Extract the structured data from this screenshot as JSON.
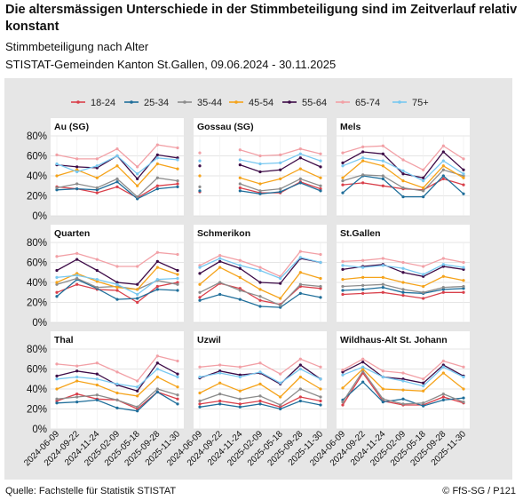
{
  "title": "Die altersmässigen Unterschiede in der Stimmbeteiligung sind im Zeitverlauf relativ konstant",
  "subtitle": "Stimmbeteiligung nach Alter",
  "subtitle2": "STISTAT-Gemeinden Kanton St.Gallen, 09.06.2024 - 30.11.2025",
  "source": "Quelle: Fachstelle für Statistik STISTAT",
  "copyright": "© FfS-SG / P121",
  "chart_data": {
    "type": "line",
    "dates": [
      "2024-06-09",
      "2024-09-22",
      "2024-11-24",
      "2025-02-09",
      "2025-05-18",
      "2025-09-28",
      "2025-11-30"
    ],
    "y_ticks": [
      "0%",
      "20%",
      "40%",
      "60%",
      "80%"
    ],
    "ylim": [
      0,
      80
    ],
    "legend_position": "top",
    "series": [
      {
        "name": "18-24",
        "color": "#d9404b"
      },
      {
        "name": "25-34",
        "color": "#1f6e9a"
      },
      {
        "name": "35-44",
        "color": "#8c8c8c"
      },
      {
        "name": "45-54",
        "color": "#f5a31a"
      },
      {
        "name": "55-64",
        "color": "#3d0b47"
      },
      {
        "name": "65-74",
        "color": "#f2a0a6"
      },
      {
        "name": "75+",
        "color": "#78c8f0"
      }
    ],
    "panels": [
      {
        "name": "Au (SG)",
        "values": [
          [
            29,
            27,
            23,
            29,
            18,
            30,
            32
          ],
          [
            26,
            27,
            26,
            34,
            17,
            27,
            29
          ],
          [
            28,
            32,
            28,
            37,
            19,
            38,
            35
          ],
          [
            40,
            46,
            38,
            50,
            30,
            52,
            47
          ],
          [
            51,
            49,
            48,
            60,
            37,
            61,
            58
          ],
          [
            61,
            57,
            57,
            67,
            49,
            71,
            68
          ],
          [
            52,
            44,
            50,
            60,
            42,
            58,
            56
          ]
        ]
      },
      {
        "name": "Gossau (SG)",
        "values": [
          [
            24,
            null,
            28,
            23,
            23,
            34,
            27
          ],
          [
            25,
            null,
            25,
            22,
            24,
            33,
            25
          ],
          [
            29,
            null,
            32,
            25,
            27,
            37,
            30
          ],
          [
            40,
            null,
            38,
            32,
            37,
            47,
            38
          ],
          [
            50,
            null,
            51,
            44,
            46,
            58,
            49
          ],
          [
            63,
            null,
            66,
            60,
            61,
            67,
            62
          ],
          [
            55,
            null,
            56,
            52,
            53,
            62,
            55
          ]
        ]
      },
      {
        "name": "Mels",
        "values": [
          [
            31,
            33,
            30,
            27,
            26,
            37,
            31
          ],
          [
            23,
            40,
            37,
            19,
            19,
            40,
            22
          ],
          [
            35,
            41,
            40,
            28,
            25,
            46,
            40
          ],
          [
            38,
            55,
            50,
            35,
            28,
            50,
            38
          ],
          [
            53,
            64,
            62,
            42,
            38,
            64,
            46
          ],
          [
            63,
            69,
            70,
            56,
            46,
            70,
            57
          ],
          [
            50,
            58,
            55,
            45,
            35,
            55,
            42
          ]
        ]
      },
      {
        "name": "Quarten",
        "values": [
          [
            30,
            38,
            33,
            32,
            20,
            36,
            40
          ],
          [
            26,
            43,
            34,
            23,
            24,
            33,
            32
          ],
          [
            38,
            44,
            35,
            36,
            33,
            42,
            38
          ],
          [
            40,
            49,
            41,
            35,
            33,
            55,
            48
          ],
          [
            52,
            63,
            52,
            40,
            38,
            61,
            52
          ],
          [
            66,
            69,
            63,
            56,
            56,
            70,
            68
          ],
          [
            45,
            47,
            43,
            38,
            28,
            43,
            44
          ]
        ]
      },
      {
        "name": "Schmerikon",
        "values": [
          [
            25,
            39,
            34,
            22,
            18,
            36,
            34
          ],
          [
            22,
            28,
            23,
            16,
            15,
            29,
            25
          ],
          [
            30,
            40,
            32,
            26,
            17,
            38,
            36
          ],
          [
            38,
            55,
            45,
            33,
            24,
            50,
            44
          ],
          [
            49,
            61,
            54,
            40,
            39,
            64,
            60
          ],
          [
            57,
            67,
            62,
            55,
            46,
            71,
            68
          ],
          [
            55,
            64,
            57,
            52,
            44,
            65,
            60
          ]
        ]
      },
      {
        "name": "St.Gallen",
        "values": [
          [
            28,
            29,
            30,
            27,
            24,
            30,
            30
          ],
          [
            32,
            33,
            35,
            30,
            29,
            33,
            34
          ],
          [
            36,
            37,
            38,
            33,
            30,
            35,
            36
          ],
          [
            43,
            45,
            45,
            40,
            36,
            46,
            42
          ],
          [
            53,
            56,
            58,
            50,
            46,
            56,
            53
          ],
          [
            61,
            62,
            64,
            60,
            56,
            64,
            60
          ],
          [
            57,
            55,
            57,
            54,
            48,
            58,
            55
          ]
        ]
      },
      {
        "name": "Thal",
        "values": [
          [
            28,
            35,
            30,
            29,
            20,
            37,
            30
          ],
          [
            26,
            27,
            29,
            21,
            18,
            37,
            25
          ],
          [
            30,
            32,
            34,
            29,
            22,
            40,
            34
          ],
          [
            40,
            48,
            44,
            36,
            33,
            52,
            42
          ],
          [
            53,
            58,
            55,
            44,
            38,
            66,
            55
          ],
          [
            65,
            63,
            66,
            57,
            48,
            73,
            68
          ],
          [
            50,
            52,
            50,
            45,
            42,
            60,
            52
          ]
        ]
      },
      {
        "name": "Uzwil",
        "values": [
          [
            25,
            28,
            25,
            28,
            22,
            32,
            28
          ],
          [
            22,
            25,
            22,
            25,
            20,
            28,
            24
          ],
          [
            28,
            35,
            30,
            33,
            24,
            40,
            32
          ],
          [
            36,
            46,
            38,
            45,
            32,
            52,
            40
          ],
          [
            51,
            58,
            54,
            56,
            45,
            64,
            50
          ],
          [
            62,
            64,
            62,
            66,
            55,
            70,
            62
          ],
          [
            52,
            56,
            52,
            57,
            46,
            60,
            50
          ]
        ]
      },
      {
        "name": "Wildhaus-Alt St. Johann",
        "values": [
          [
            24,
            56,
            28,
            24,
            24,
            32,
            26
          ],
          [
            29,
            47,
            27,
            30,
            23,
            29,
            31
          ],
          [
            27,
            58,
            30,
            25,
            26,
            35,
            27
          ],
          [
            41,
            60,
            40,
            39,
            38,
            56,
            40
          ],
          [
            57,
            67,
            52,
            50,
            46,
            64,
            53
          ],
          [
            59,
            70,
            58,
            56,
            50,
            68,
            62
          ],
          [
            54,
            62,
            52,
            48,
            43,
            62,
            52
          ]
        ]
      }
    ]
  }
}
